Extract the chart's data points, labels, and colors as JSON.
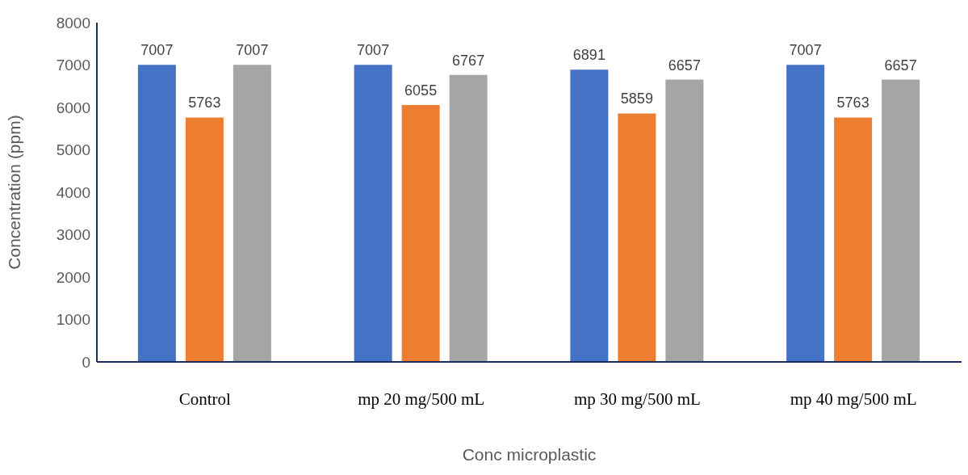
{
  "chart_data": {
    "type": "bar",
    "xlabel": "Conc microplastic",
    "ylabel": "Concentration (ppm)",
    "categories": [
      "Control",
      "mp 20 mg/500 mL",
      "mp 30 mg/500 mL",
      "mp 40 mg/500 mL"
    ],
    "series": [
      {
        "color": "#4472c4",
        "values": [
          7007,
          7007,
          6891,
          7007
        ]
      },
      {
        "color": "#ed7d31",
        "values": [
          5763,
          6055,
          5859,
          5763
        ]
      },
      {
        "color": "#a5a5a5",
        "values": [
          7007,
          6767,
          6657,
          6657
        ]
      }
    ],
    "ylim": [
      0,
      8000
    ],
    "yticks": [
      0,
      1000,
      2000,
      3000,
      4000,
      5000,
      6000,
      7000,
      8000
    ],
    "grid": false,
    "legend": false,
    "data_labels": true
  }
}
